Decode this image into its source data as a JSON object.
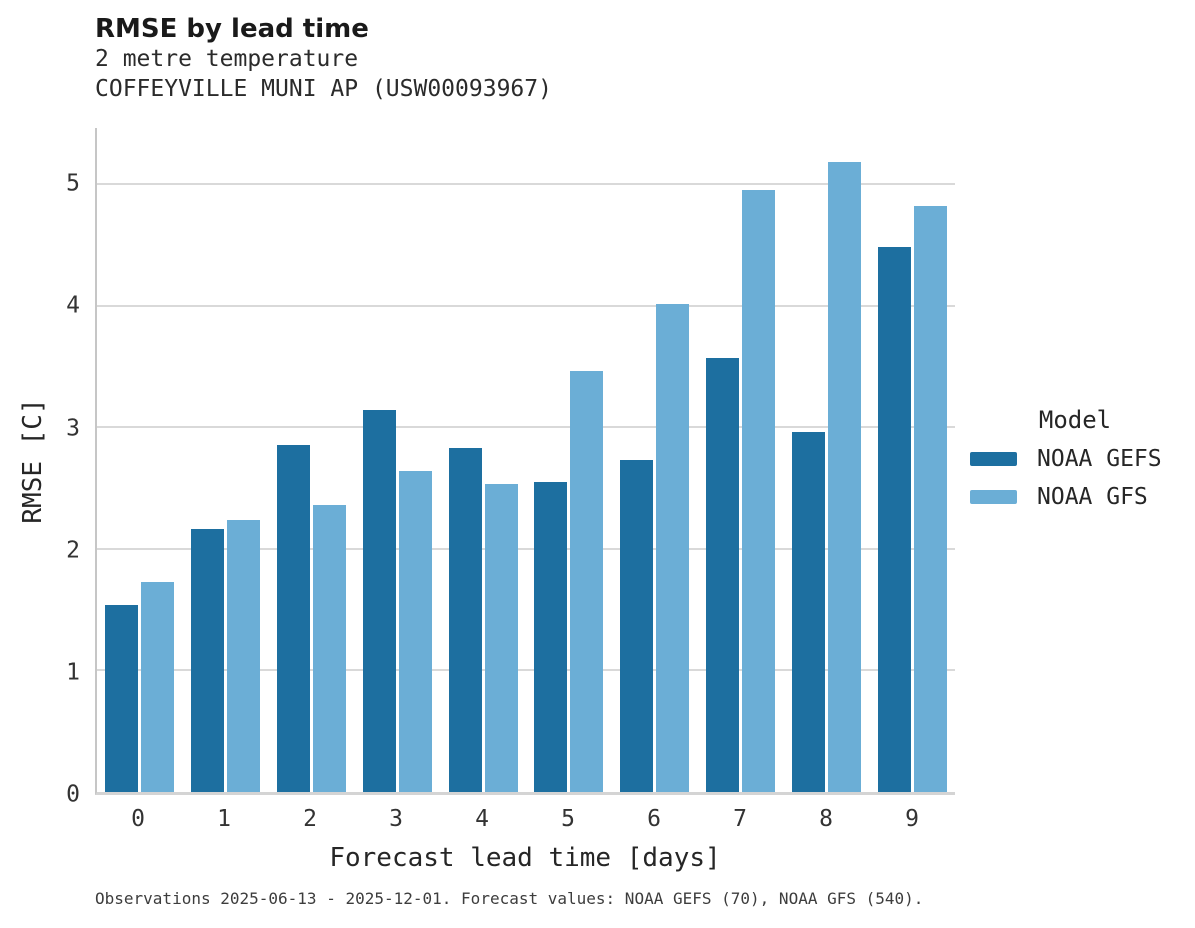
{
  "header": {
    "title": "RMSE by lead time",
    "subtitle1": "2 metre temperature",
    "subtitle2": "COFFEYVILLE MUNI AP (USW00093967)"
  },
  "footer": {
    "caption": "Observations 2025-06-13 - 2025-12-01. Forecast values: NOAA GEFS (70), NOAA GFS (540)."
  },
  "legend": {
    "title": "Model"
  },
  "colors": {
    "gefs": "#1d6fa0",
    "gfs": "#6baed6",
    "gridline": "#d9d9d9",
    "spine": "#c6c6c6",
    "text": "#262626"
  },
  "chart_data": {
    "type": "bar",
    "title": "RMSE by lead time",
    "subtitle": [
      "2 metre temperature",
      "COFFEYVILLE MUNI AP (USW00093967)"
    ],
    "categories": [
      "0",
      "1",
      "2",
      "3",
      "4",
      "5",
      "6",
      "7",
      "8",
      "9"
    ],
    "series": [
      {
        "name": "NOAA GEFS",
        "color": "#1d6fa0",
        "values": [
          1.54,
          2.16,
          2.85,
          3.14,
          2.83,
          2.55,
          2.73,
          3.57,
          2.96,
          4.48
        ]
      },
      {
        "name": "NOAA GFS",
        "color": "#6baed6",
        "values": [
          1.73,
          2.24,
          2.36,
          2.64,
          2.53,
          3.46,
          4.01,
          4.95,
          5.18,
          4.82
        ]
      }
    ],
    "xlabel": "Forecast lead time [days]",
    "ylabel": "RMSE [C]",
    "ylim": [
      0,
      5.46
    ],
    "yticks": [
      0,
      1,
      2,
      3,
      4,
      5
    ],
    "grid": true,
    "legend_title": "Model",
    "legend_position": "right",
    "caption": "Observations 2025-06-13 - 2025-12-01. Forecast values: NOAA GEFS (70), NOAA GFS (540)."
  }
}
